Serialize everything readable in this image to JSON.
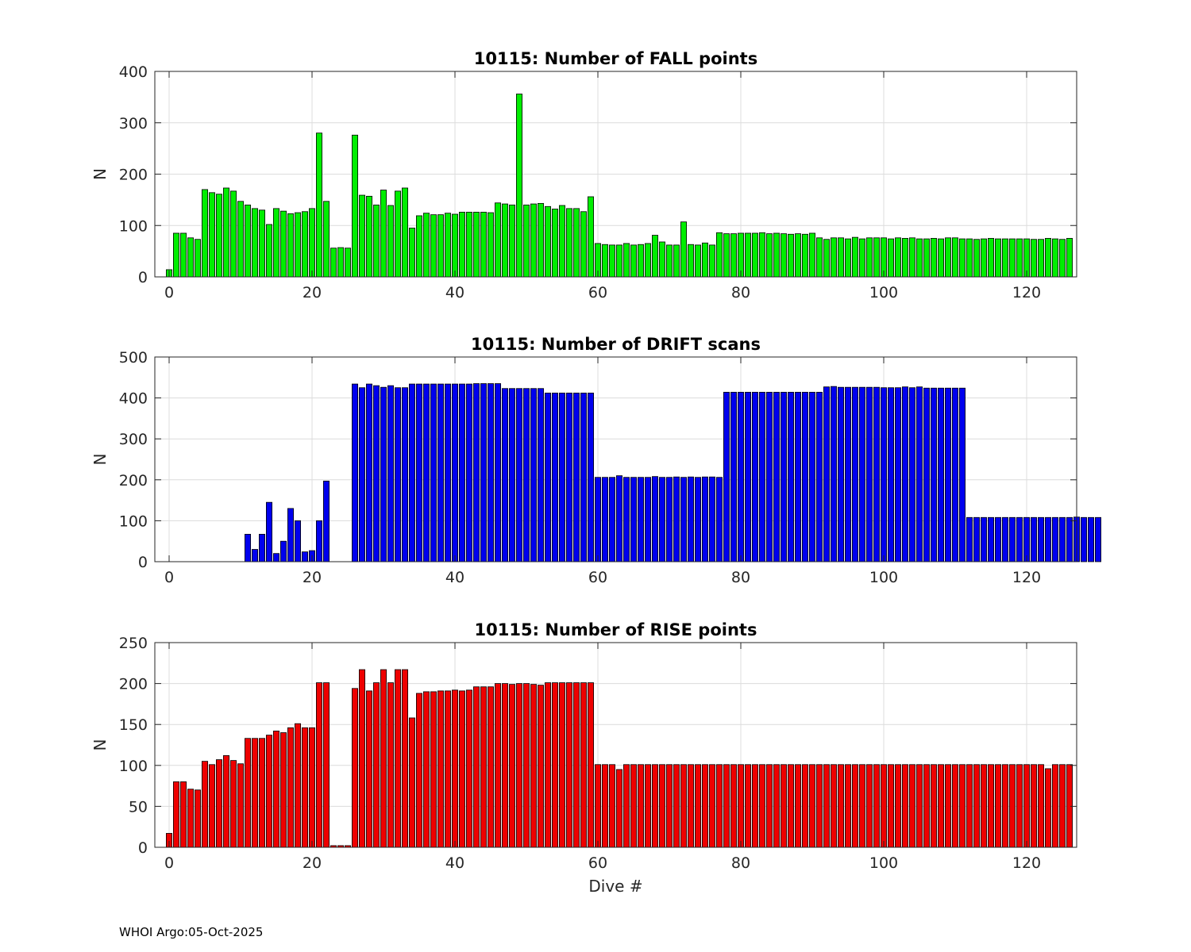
{
  "footer": "WHOI Argo:05-Oct-2025",
  "chart_data": [
    {
      "type": "bar",
      "title": "10115: Number of FALL points",
      "xlabel": "",
      "ylabel": "N",
      "xlim": [
        -2,
        127
      ],
      "ylim": [
        0,
        400
      ],
      "xticks": [
        0,
        20,
        40,
        60,
        80,
        100,
        120
      ],
      "yticks": [
        0,
        100,
        200,
        300,
        400
      ],
      "grid": true,
      "color": "#00ee00",
      "x_start": 0,
      "values": [
        14,
        85,
        85,
        76,
        73,
        170,
        164,
        161,
        173,
        167,
        147,
        140,
        133,
        130,
        102,
        133,
        128,
        123,
        125,
        127,
        133,
        280,
        147,
        56,
        57,
        56,
        276,
        159,
        157,
        140,
        169,
        139,
        167,
        173,
        95,
        119,
        124,
        121,
        121,
        124,
        122,
        126,
        126,
        126,
        126,
        125,
        144,
        142,
        140,
        356,
        140,
        142,
        143,
        137,
        132,
        139,
        133,
        133,
        127,
        156,
        65,
        63,
        62,
        62,
        65,
        62,
        63,
        65,
        81,
        68,
        62,
        62,
        107,
        63,
        62,
        66,
        62,
        86,
        84,
        84,
        85,
        85,
        85,
        86,
        84,
        85,
        84,
        83,
        84,
        83,
        85,
        76,
        73,
        76,
        76,
        74,
        77,
        74,
        76,
        76,
        76,
        74,
        76,
        75,
        76,
        74,
        74,
        75,
        74,
        76,
        76,
        74,
        74,
        73,
        74,
        75,
        74,
        74,
        74,
        74,
        74,
        73,
        73,
        75,
        74,
        73,
        75
      ]
    },
    {
      "type": "bar",
      "title": "10115: Number of DRIFT scans",
      "xlabel": "",
      "ylabel": "N",
      "xlim": [
        -2,
        127
      ],
      "ylim": [
        0,
        500
      ],
      "xticks": [
        0,
        20,
        40,
        60,
        80,
        100,
        120
      ],
      "yticks": [
        0,
        100,
        200,
        300,
        400,
        500
      ],
      "grid": true,
      "color": "#0000ee",
      "x_start": -1,
      "values": [
        0,
        0,
        0,
        0,
        0,
        0,
        0,
        0,
        0,
        0,
        0,
        0,
        67,
        30,
        67,
        145,
        20,
        50,
        130,
        100,
        24,
        27,
        100,
        197,
        0,
        0,
        0,
        434,
        425,
        434,
        430,
        426,
        430,
        425,
        425,
        434,
        434,
        434,
        434,
        434,
        434,
        434,
        434,
        434,
        435,
        435,
        435,
        435,
        423,
        423,
        423,
        423,
        423,
        423,
        412,
        412,
        412,
        412,
        412,
        412,
        412,
        206,
        206,
        206,
        210,
        206,
        206,
        206,
        206,
        208,
        206,
        206,
        207,
        206,
        207,
        206,
        207,
        207,
        206,
        414,
        414,
        414,
        414,
        414,
        414,
        414,
        414,
        414,
        414,
        414,
        414,
        414,
        414,
        427,
        428,
        426,
        426,
        426,
        426,
        426,
        426,
        425,
        425,
        425,
        427,
        425,
        427,
        424,
        424,
        424,
        424,
        424,
        424,
        108,
        108,
        108,
        108,
        108,
        108,
        108,
        108,
        108,
        108,
        108,
        108,
        108,
        108,
        108,
        109,
        108,
        108,
        108
      ]
    },
    {
      "type": "bar",
      "title": "10115: Number of RISE points",
      "xlabel": "Dive #",
      "ylabel": "N",
      "xlim": [
        -2,
        127
      ],
      "ylim": [
        0,
        250
      ],
      "xticks": [
        0,
        20,
        40,
        60,
        80,
        100,
        120
      ],
      "yticks": [
        0,
        50,
        100,
        150,
        200,
        250
      ],
      "grid": true,
      "color": "#ee0000",
      "x_start": 0,
      "values": [
        17,
        80,
        80,
        71,
        70,
        105,
        101,
        107,
        112,
        106,
        102,
        133,
        133,
        133,
        137,
        142,
        140,
        146,
        151,
        146,
        146,
        201,
        201,
        2,
        2,
        2,
        194,
        217,
        191,
        201,
        217,
        201,
        217,
        217,
        158,
        188,
        190,
        190,
        191,
        191,
        192,
        191,
        192,
        196,
        196,
        196,
        200,
        200,
        199,
        200,
        200,
        199,
        198,
        201,
        201,
        201,
        201,
        201,
        201,
        201,
        101,
        101,
        101,
        95,
        101,
        101,
        101,
        101,
        101,
        101,
        101,
        101,
        101,
        101,
        101,
        101,
        101,
        101,
        101,
        101,
        101,
        101,
        101,
        101,
        101,
        101,
        101,
        101,
        101,
        101,
        101,
        101,
        101,
        101,
        101,
        101,
        101,
        101,
        101,
        101,
        101,
        101,
        101,
        101,
        101,
        101,
        101,
        101,
        101,
        101,
        101,
        101,
        101,
        101,
        101,
        101,
        101,
        101,
        101,
        101,
        101,
        101,
        101,
        96,
        101,
        101,
        101
      ]
    }
  ]
}
